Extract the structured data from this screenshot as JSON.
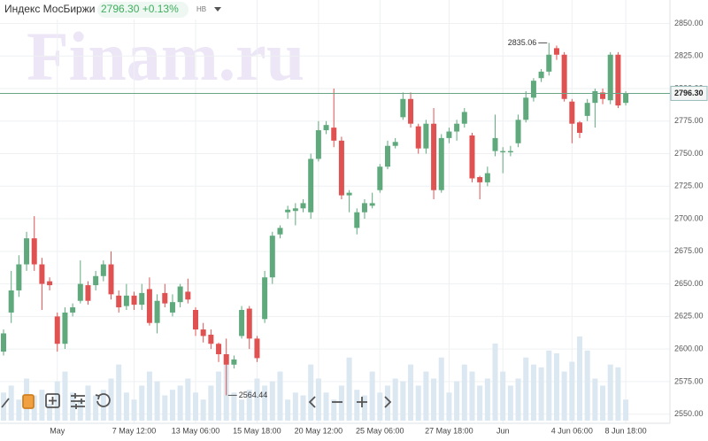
{
  "chart_data": {
    "type": "candlestick",
    "title": "Индекс МосБиржи",
    "price_change": "2796.30 +0.13%",
    "badge": "НВ",
    "watermark": "Finam.ru",
    "last_price": {
      "value": 2796.3,
      "label": "2796.30"
    },
    "up_color": "#5fa97d",
    "down_color": "#e05252",
    "volume_color": "#dbe7f1",
    "last_line_color": "#6aa585",
    "grid": true,
    "ylim": [
      2545,
      2868
    ],
    "yticks": [
      {
        "value": 2550,
        "label": "2550.00"
      },
      {
        "value": 2575,
        "label": "2575.00"
      },
      {
        "value": 2600,
        "label": "2600.00"
      },
      {
        "value": 2625,
        "label": "2625.00"
      },
      {
        "value": 2650,
        "label": "2650.00"
      },
      {
        "value": 2675,
        "label": "2675.00"
      },
      {
        "value": 2700,
        "label": "2700.00"
      },
      {
        "value": 2725,
        "label": "2725.00"
      },
      {
        "value": 2750,
        "label": "2750.00"
      },
      {
        "value": 2775,
        "label": "2775.00"
      },
      {
        "value": 2800,
        "label": "2800.00"
      },
      {
        "value": 2825,
        "label": "2825.00"
      },
      {
        "value": 2850,
        "label": "2850.00"
      }
    ],
    "categories": [
      null,
      null,
      null,
      null,
      null,
      null,
      null,
      "May",
      null,
      null,
      null,
      null,
      null,
      null,
      null,
      null,
      null,
      "7 May 12:00",
      null,
      null,
      null,
      null,
      null,
      null,
      null,
      "13 May 06:00",
      null,
      null,
      null,
      null,
      null,
      null,
      null,
      "15 May 18:00",
      null,
      null,
      null,
      null,
      null,
      null,
      null,
      "20 May 12:00",
      null,
      null,
      null,
      null,
      null,
      null,
      null,
      "25 May 06:00",
      null,
      null,
      null,
      null,
      null,
      null,
      null,
      null,
      "27 May 18:00",
      null,
      null,
      null,
      null,
      null,
      null,
      "Jun",
      null,
      null,
      null,
      null,
      null,
      null,
      null,
      null,
      "4 Jun 06:00",
      null,
      null,
      null,
      null,
      null,
      null,
      "8 Jun 18:00"
    ],
    "open": [
      2598,
      2628,
      2645,
      2665,
      2685,
      2665,
      2652,
      2625,
      2604,
      2628,
      2637,
      2649,
      2649,
      2656,
      2665,
      2641,
      2633,
      2641,
      2634,
      2646,
      2620,
      2643,
      2628,
      2636,
      2644,
      2630,
      2615,
      2611,
      2604,
      2596,
      2588,
      2610,
      2631,
      2608,
      2623,
      2655,
      2688,
      2705,
      2706,
      2708,
      2705,
      2746,
      2768,
      2770,
      2760,
      2718,
      2693,
      2705,
      2710,
      2722,
      2740,
      2756,
      2778,
      2792,
      2771,
      2754,
      2773,
      2722,
      2762,
      2767,
      2773,
      2764,
      2732,
      2728,
      2752,
      2751,
      2751,
      2758,
      2776,
      2793,
      2808,
      2813,
      2831,
      2826,
      2790,
      2774,
      2779,
      2789,
      2797,
      2791,
      2826,
      2789
    ],
    "high": [
      2615,
      2660,
      2672,
      2690,
      2702,
      2670,
      2655,
      2628,
      2632,
      2635,
      2668,
      2652,
      2660,
      2668,
      2675,
      2645,
      2650,
      2644,
      2650,
      2655,
      2642,
      2650,
      2642,
      2650,
      2654,
      2632,
      2620,
      2615,
      2605,
      2608,
      2595,
      2633,
      2633,
      2610,
      2660,
      2690,
      2695,
      2710,
      2712,
      2715,
      2750,
      2775,
      2775,
      2800,
      2763,
      2722,
      2708,
      2715,
      2720,
      2742,
      2760,
      2762,
      2797,
      2797,
      2773,
      2776,
      2785,
      2765,
      2770,
      2776,
      2785,
      2766,
      2733,
      2740,
      2780,
      2755,
      2756,
      2780,
      2798,
      2808,
      2815,
      2835.06,
      2833,
      2828,
      2792,
      2775,
      2792,
      2800,
      2800,
      2828,
      2828,
      2798
    ],
    "low": [
      2595,
      2620,
      2640,
      2660,
      2660,
      2630,
      2645,
      2598,
      2600,
      2625,
      2635,
      2634,
      2645,
      2652,
      2638,
      2628,
      2630,
      2630,
      2630,
      2618,
      2612,
      2632,
      2625,
      2632,
      2635,
      2610,
      2605,
      2600,
      2590,
      2564.44,
      2585,
      2608,
      2600,
      2590,
      2620,
      2650,
      2685,
      2700,
      2695,
      2705,
      2700,
      2744,
      2765,
      2755,
      2715,
      2705,
      2688,
      2700,
      2708,
      2720,
      2738,
      2754,
      2776,
      2770,
      2750,
      2750,
      2715,
      2720,
      2758,
      2760,
      2770,
      2728,
      2715,
      2725,
      2748,
      2735,
      2748,
      2755,
      2774,
      2790,
      2805,
      2810,
      2822,
      2790,
      2758,
      2762,
      2775,
      2770,
      2788,
      2788,
      2785,
      2787
    ],
    "close": [
      2612,
      2645,
      2665,
      2685,
      2665,
      2650,
      2649,
      2604,
      2628,
      2632,
      2650,
      2637,
      2656,
      2665,
      2642,
      2632,
      2641,
      2634,
      2643,
      2620,
      2637,
      2635,
      2636,
      2648,
      2638,
      2615,
      2610,
      2604,
      2596,
      2588,
      2592,
      2630,
      2608,
      2593,
      2655,
      2687,
      2693,
      2707,
      2708,
      2712,
      2746,
      2768,
      2772,
      2760,
      2718,
      2720,
      2705,
      2712,
      2712,
      2740,
      2756,
      2759,
      2792,
      2773,
      2754,
      2773,
      2722,
      2762,
      2767,
      2773,
      2782,
      2731,
      2728,
      2735,
      2762,
      2752,
      2752,
      2776,
      2793,
      2806,
      2813,
      2826,
      2826,
      2792,
      2773,
      2766,
      2789,
      2798,
      2792,
      2826,
      2787,
      2796.3
    ],
    "volume": [
      20,
      25,
      15,
      30,
      18,
      22,
      12,
      28,
      35,
      20,
      15,
      25,
      18,
      22,
      30,
      40,
      20,
      15,
      25,
      35,
      28,
      18,
      22,
      25,
      30,
      20,
      15,
      25,
      35,
      40,
      20,
      15,
      22,
      30,
      25,
      28,
      35,
      15,
      20,
      18,
      40,
      30,
      20,
      15,
      25,
      45,
      22,
      18,
      35,
      20,
      25,
      30,
      28,
      40,
      25,
      35,
      30,
      45,
      20,
      28,
      40,
      35,
      25,
      30,
      55,
      35,
      25,
      30,
      45,
      40,
      38,
      50,
      48,
      35,
      42,
      60,
      50,
      30,
      25,
      40,
      38,
      15
    ]
  }
}
